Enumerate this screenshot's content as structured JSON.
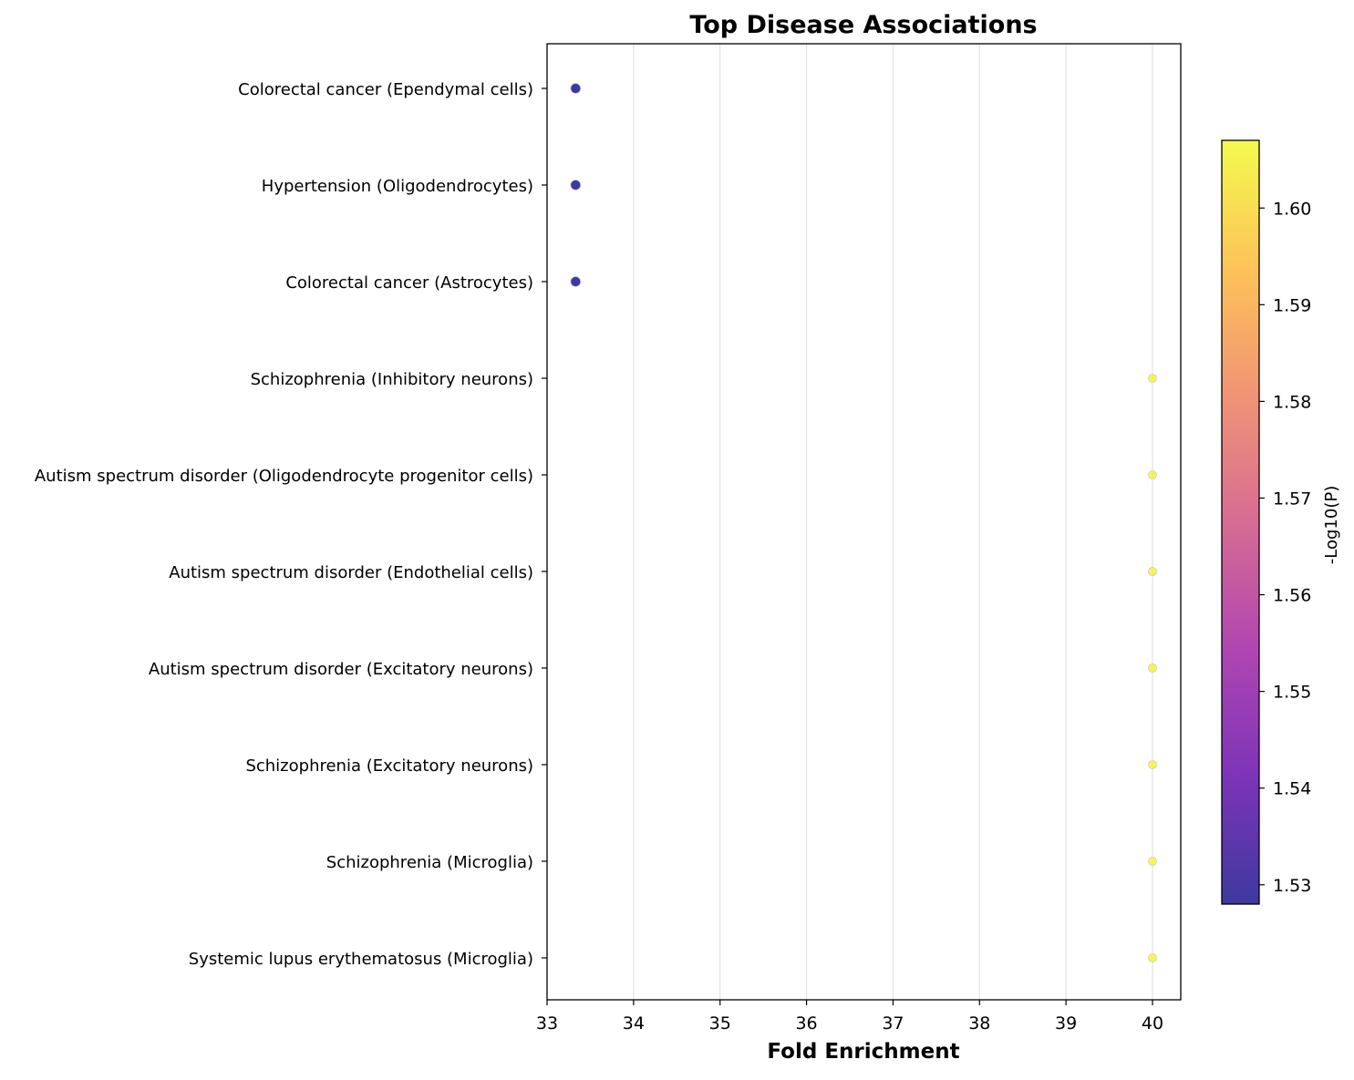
{
  "chart_data": {
    "type": "scatter",
    "title": "Top Disease Associations",
    "xlabel": "Fold Enrichment",
    "ylabel": "",
    "xlim": [
      33,
      40.33
    ],
    "xticks": [
      33,
      34,
      35,
      36,
      37,
      38,
      39,
      40
    ],
    "grid": "vertical",
    "categories": [
      "Colorectal cancer (Ependymal cells)",
      "Hypertension (Oligodendrocytes)",
      "Colorectal cancer (Astrocytes)",
      "Schizophrenia (Inhibitory neurons)",
      "Autism spectrum disorder (Oligodendrocyte progenitor cells)",
      "Autism spectrum disorder (Endothelial cells)",
      "Autism spectrum disorder (Excitatory neurons)",
      "Schizophrenia (Excitatory neurons)",
      "Schizophrenia (Microglia)",
      "Systemic lupus erythematosus (Microglia)"
    ],
    "x": [
      33.33,
      33.33,
      33.33,
      40.0,
      40.0,
      40.0,
      40.0,
      40.0,
      40.0,
      40.0
    ],
    "color_values": [
      1.528,
      1.528,
      1.528,
      1.607,
      1.607,
      1.607,
      1.607,
      1.607,
      1.607,
      1.607
    ],
    "sizes": [
      3,
      3,
      3,
      2,
      2,
      2,
      2,
      2,
      2,
      2
    ],
    "colorbar": {
      "label": "-Log10(P)",
      "range": [
        1.528,
        1.607
      ],
      "ticks": [
        1.53,
        1.54,
        1.55,
        1.56,
        1.57,
        1.58,
        1.59,
        1.6
      ],
      "tick_labels": [
        "1.53",
        "1.54",
        "1.55",
        "1.56",
        "1.57",
        "1.58",
        "1.59",
        "1.60"
      ],
      "colormap": "plasma",
      "colors": [
        "#0d0887",
        "#5c01a6",
        "#9c179e",
        "#cc4778",
        "#ed7953",
        "#fdb42f",
        "#f0f921"
      ]
    }
  }
}
